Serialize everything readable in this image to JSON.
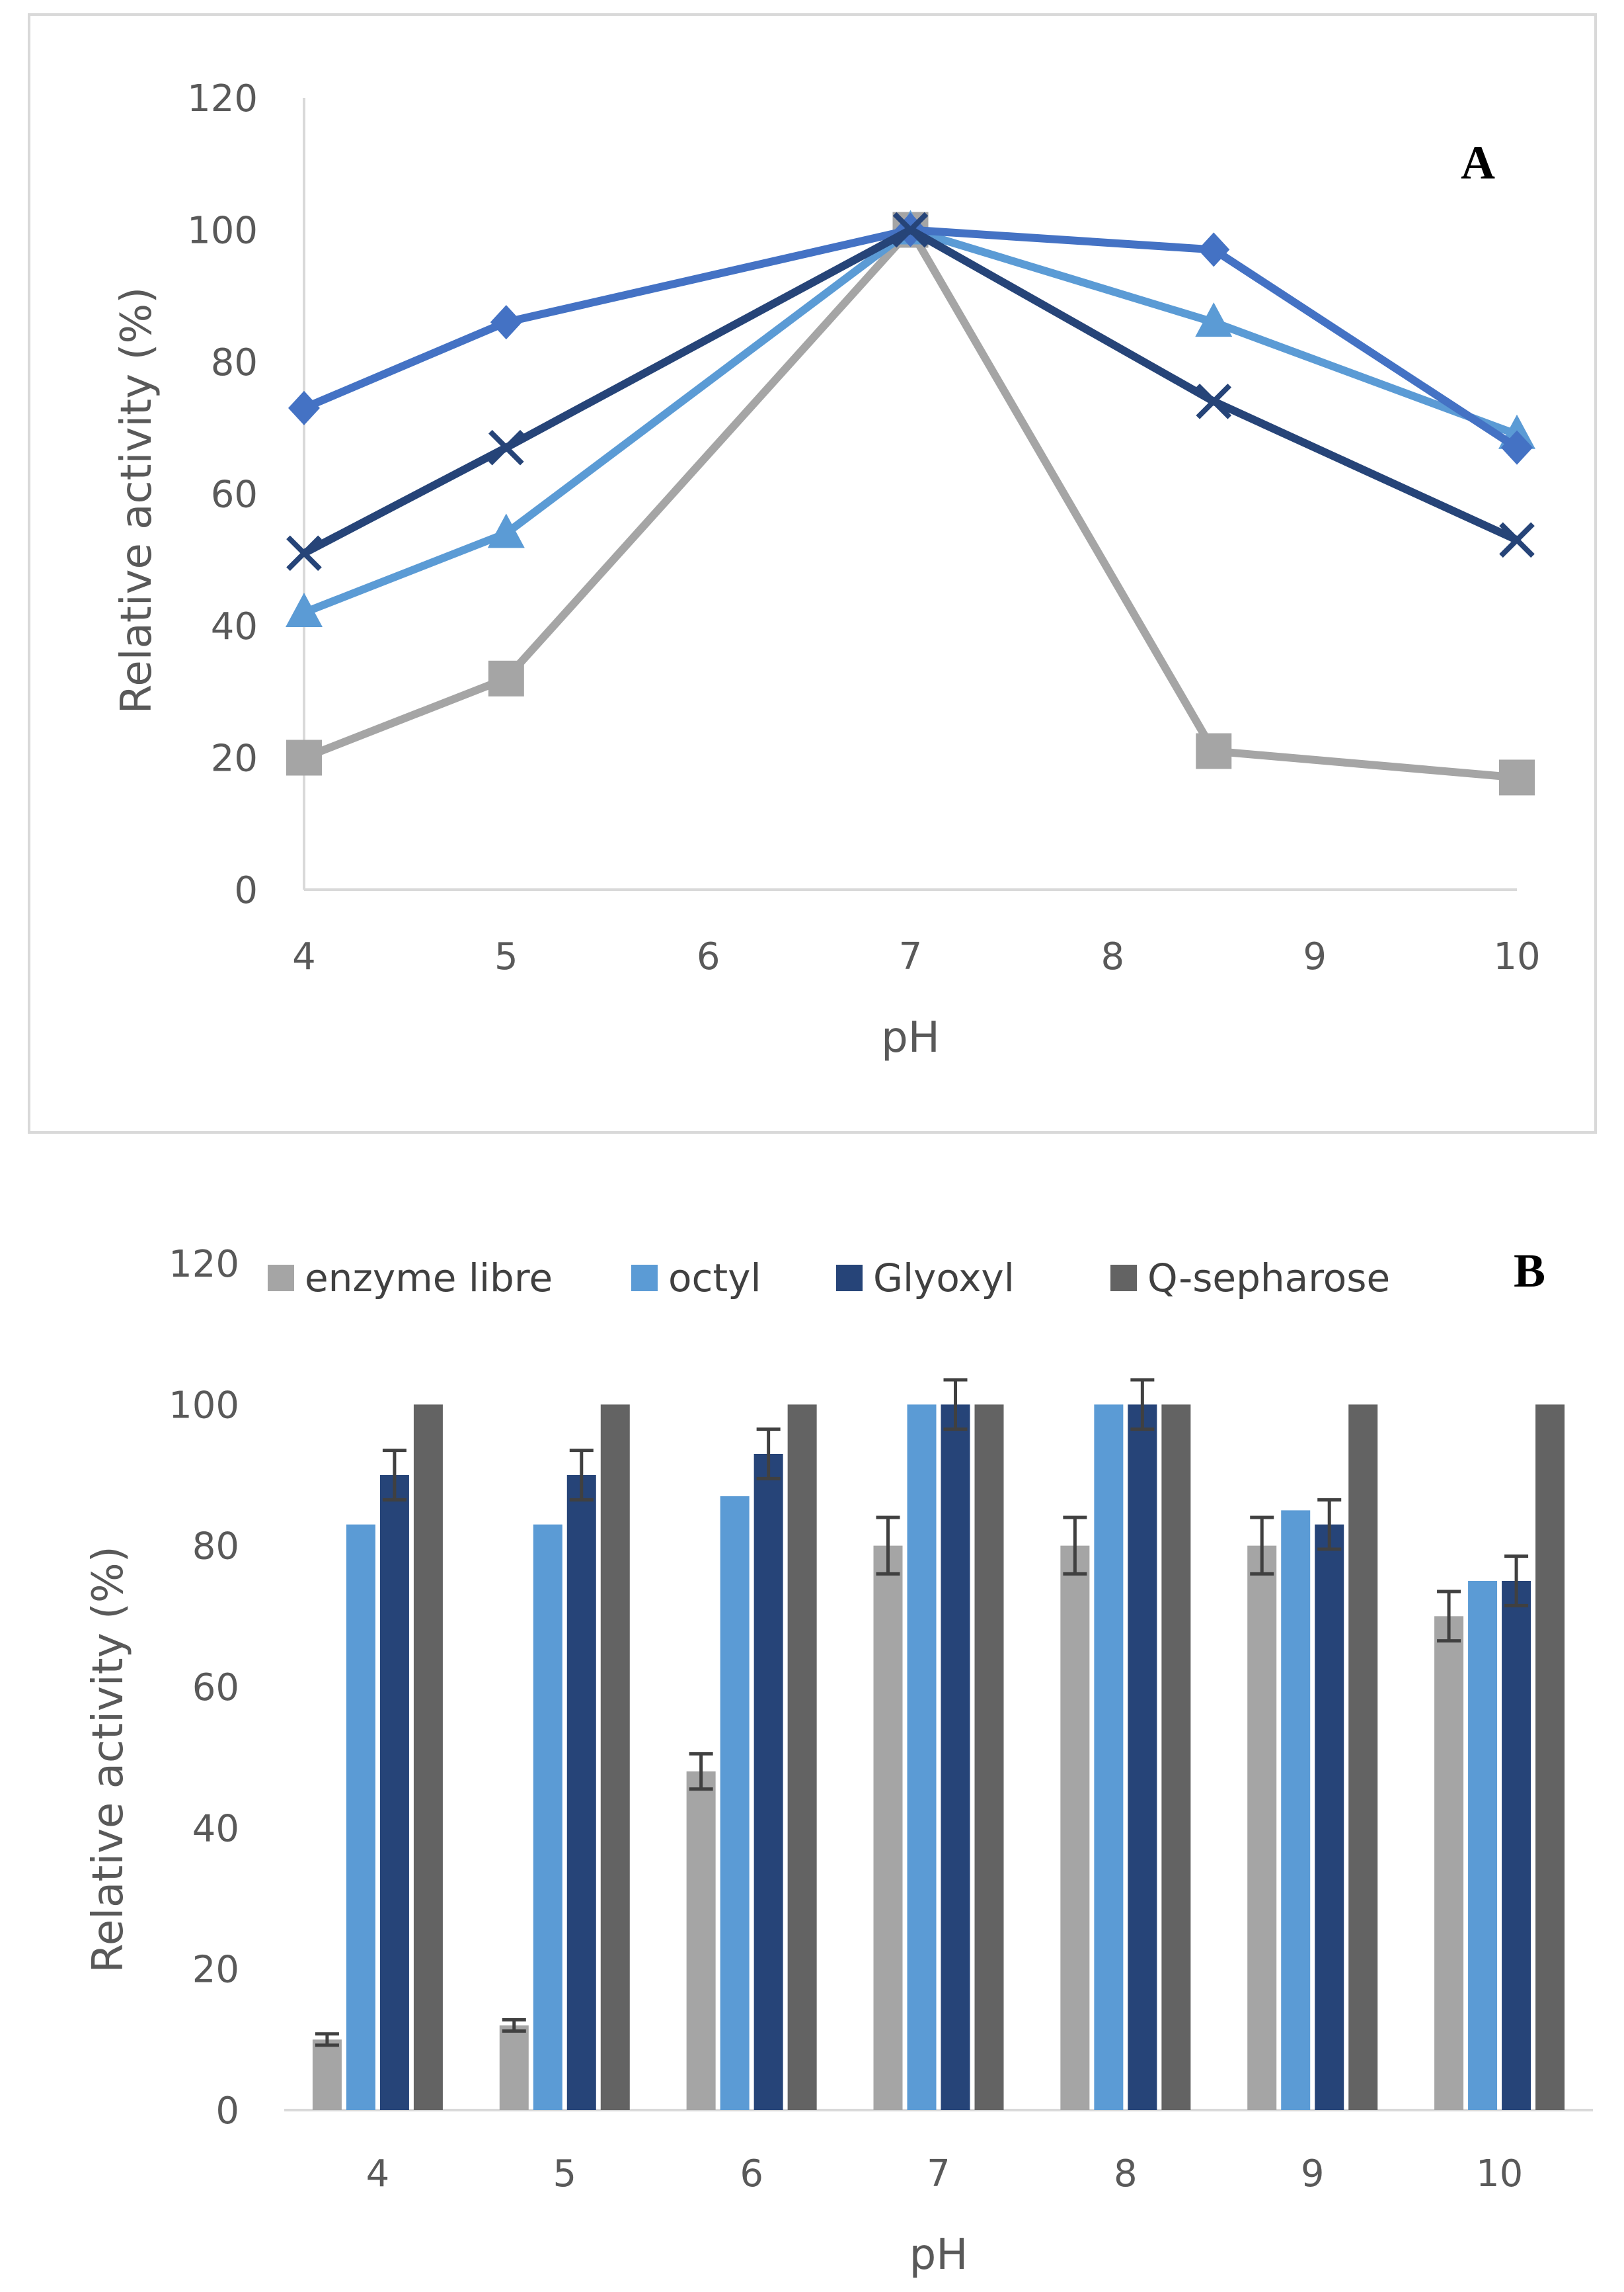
{
  "chart_data": [
    {
      "type": "line",
      "panel_label": "A",
      "xlabel": "pH",
      "ylabel": "Relative activity (%)",
      "xlim": [
        4,
        10
      ],
      "ylim": [
        0,
        120
      ],
      "x_ticks": [
        "4",
        "5",
        "6",
        "7",
        "8",
        "9",
        "10"
      ],
      "y_ticks": [
        "0",
        "20",
        "40",
        "60",
        "80",
        "100",
        "120"
      ],
      "grid": false,
      "legend": "none",
      "series": [
        {
          "name": "gray-squares",
          "color": "#A5A5A5",
          "marker": "square",
          "x": [
            4,
            5,
            7,
            8.5,
            10
          ],
          "values": [
            20,
            32,
            100,
            21,
            17
          ]
        },
        {
          "name": "light-blue-triangles",
          "color": "#5B9BD5",
          "marker": "triangle",
          "x": [
            4,
            5,
            7,
            8.5,
            10
          ],
          "values": [
            42,
            54,
            100,
            86,
            69
          ]
        },
        {
          "name": "blue-diamonds",
          "color": "#4472C4",
          "marker": "diamond",
          "x": [
            4,
            5,
            7,
            8.5,
            10
          ],
          "values": [
            73,
            86,
            100,
            97,
            67
          ]
        },
        {
          "name": "navy-crosses",
          "color": "#264478",
          "marker": "cross",
          "x": [
            4,
            5,
            7,
            8.5,
            10
          ],
          "values": [
            51,
            67,
            100,
            74,
            53
          ]
        }
      ]
    },
    {
      "type": "bar",
      "panel_label": "B",
      "xlabel": "pH",
      "ylabel": "Relative activity (%)",
      "categories": [
        "4",
        "5",
        "6",
        "7",
        "8",
        "9",
        "10"
      ],
      "ylim": [
        0,
        120
      ],
      "y_ticks": [
        "0",
        "20",
        "40",
        "60",
        "80",
        "100",
        "120"
      ],
      "grid": false,
      "legend": "top",
      "series": [
        {
          "name": "enzyme libre",
          "color": "#A5A5A5",
          "values": [
            10,
            12,
            48,
            80,
            80,
            80,
            70
          ],
          "errors": [
            0.8,
            0.8,
            2.5,
            4,
            4,
            4,
            3.5
          ]
        },
        {
          "name": "octyl",
          "color": "#5B9BD5",
          "values": [
            83,
            83,
            87,
            100,
            100,
            85,
            75
          ],
          "errors": null
        },
        {
          "name": "Glyoxyl",
          "color": "#264478",
          "values": [
            90,
            90,
            93,
            100,
            100,
            83,
            75
          ],
          "errors": [
            3.5,
            3.5,
            3.5,
            3.5,
            3.5,
            3.5,
            3.5
          ]
        },
        {
          "name": "Q-sepharose",
          "color": "#636363",
          "values": [
            100,
            100,
            100,
            100,
            100,
            100,
            100
          ],
          "errors": null
        }
      ]
    }
  ]
}
